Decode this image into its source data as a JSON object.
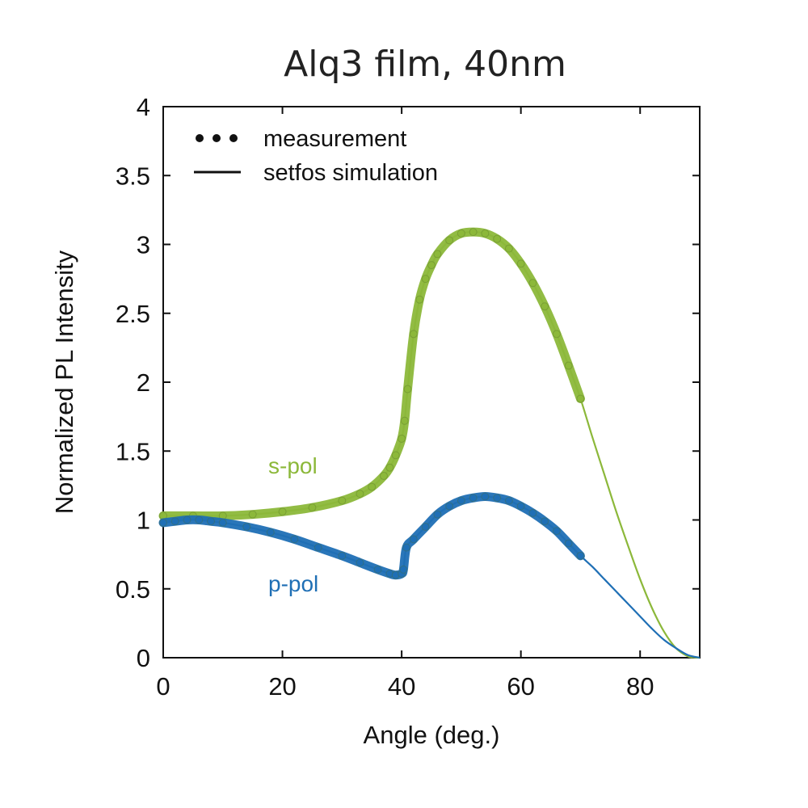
{
  "chart_data": {
    "type": "line",
    "title": "Alq3 film, 40nm",
    "xlabel": "Angle (deg.)",
    "ylabel": "Normalized PL Intensity",
    "xlim": [
      0,
      90
    ],
    "ylim": [
      0,
      4
    ],
    "x_ticks": [
      0,
      20,
      40,
      60,
      80
    ],
    "x_tick_labels": [
      "0",
      "20",
      "40",
      "60",
      "80"
    ],
    "y_ticks": [
      0,
      0.5,
      1,
      1.5,
      2,
      2.5,
      3,
      3.5,
      4
    ],
    "y_tick_labels": [
      "0",
      "0.5",
      "1",
      "1.5",
      "2",
      "2.5",
      "3",
      "3.5",
      "4"
    ],
    "grid": false,
    "legend": {
      "placement": "top-left",
      "entries": [
        {
          "label": "measurement",
          "style": "dots"
        },
        {
          "label": "setfos simulation",
          "style": "line"
        }
      ]
    },
    "series": [
      {
        "name": "s-pol",
        "color": "#8cb83a",
        "x": [
          0,
          5,
          10,
          15,
          20,
          25,
          30,
          33,
          35,
          37,
          38,
          39,
          40,
          40.5,
          41,
          42,
          43,
          44,
          45,
          46,
          48,
          50,
          52,
          54,
          56,
          58,
          60,
          62,
          64,
          66,
          68,
          70,
          72,
          74,
          76,
          78,
          80,
          82,
          84,
          86,
          88,
          89,
          90
        ],
        "y": [
          1.03,
          1.03,
          1.03,
          1.04,
          1.06,
          1.09,
          1.14,
          1.19,
          1.24,
          1.32,
          1.38,
          1.47,
          1.59,
          1.72,
          1.95,
          2.35,
          2.6,
          2.75,
          2.85,
          2.93,
          3.03,
          3.08,
          3.09,
          3.08,
          3.04,
          2.97,
          2.86,
          2.72,
          2.55,
          2.35,
          2.12,
          1.88,
          1.6,
          1.33,
          1.06,
          0.81,
          0.57,
          0.36,
          0.19,
          0.07,
          0.01,
          0.003,
          0
        ],
        "measured_until_x": 70
      },
      {
        "name": "p-pol",
        "color": "#1f6fb5",
        "x": [
          0,
          2,
          4,
          6,
          8,
          10,
          14,
          18,
          22,
          26,
          30,
          33,
          36,
          38,
          39,
          40,
          40.3,
          40.8,
          42,
          44,
          46,
          48,
          50,
          52,
          54,
          56,
          58,
          60,
          62,
          64,
          66,
          68,
          70,
          72,
          74,
          76,
          78,
          80,
          82,
          84,
          86,
          88,
          90
        ],
        "y": [
          0.98,
          0.99,
          1.0,
          1.0,
          0.99,
          0.98,
          0.95,
          0.91,
          0.86,
          0.8,
          0.74,
          0.69,
          0.64,
          0.61,
          0.6,
          0.61,
          0.64,
          0.8,
          0.86,
          0.95,
          1.04,
          1.1,
          1.14,
          1.16,
          1.17,
          1.16,
          1.14,
          1.1,
          1.05,
          0.99,
          0.92,
          0.83,
          0.74,
          0.66,
          0.57,
          0.48,
          0.39,
          0.3,
          0.21,
          0.13,
          0.07,
          0.02,
          0
        ],
        "measured_until_x": 70
      }
    ]
  }
}
